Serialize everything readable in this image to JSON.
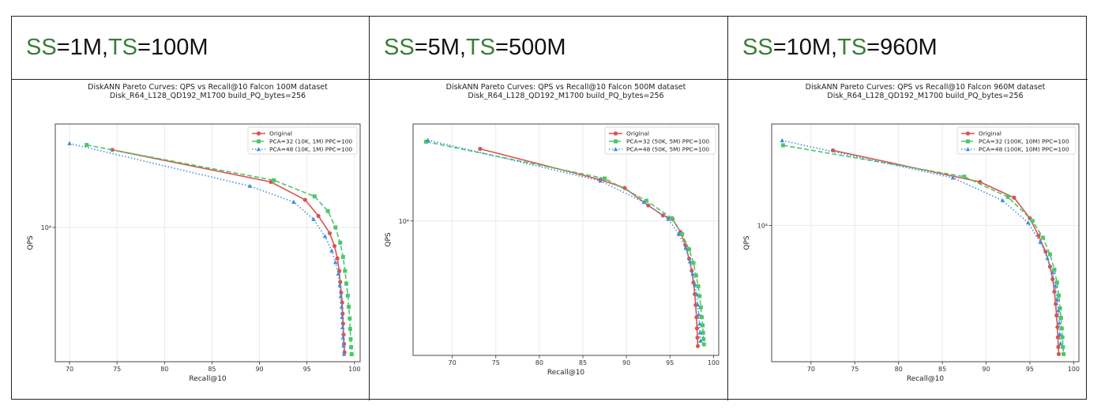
{
  "headers": [
    {
      "ss_label": "SS",
      "ss_value": "=1M, ",
      "ts_label": "TS",
      "ts_value": "=100M"
    },
    {
      "ss_label": "SS",
      "ss_value": "=5M, ",
      "ts_label": "TS",
      "ts_value": "=500M"
    },
    {
      "ss_label": "SS",
      "ss_value": "=10M, ",
      "ts_label": "TS",
      "ts_value": "=960M"
    }
  ],
  "colors": {
    "original": "#d9534f",
    "pca32": "#4cc76a",
    "pca48": "#3f8fe0",
    "accent_green": "#3a7d3a"
  },
  "chart_data": [
    {
      "type": "line",
      "title": "DiskANN Pareto Curves: QPS vs Recall@10 Falcon 100M dataset",
      "subtitle": "Disk_R64_L128_QD192_M1700 build_PQ_bytes=256",
      "xlabel": "Recall@10",
      "ylabel": "QPS",
      "xlim": [
        68.5,
        100.6
      ],
      "ylim": [
        2400,
        30000
      ],
      "yscale": "log",
      "xticks": [
        70,
        75,
        80,
        85,
        90,
        95,
        100
      ],
      "ytick_label": "10⁴",
      "ytick_value": 10000,
      "grid": true,
      "legend_position": "top-right",
      "series": [
        {
          "name": "Original",
          "style": "solid-circle",
          "x": [
            74.5,
            91.2,
            94.8,
            96.2,
            97.4,
            97.9,
            98.2,
            98.4,
            98.5,
            98.6,
            98.7,
            98.75,
            98.8,
            98.85,
            98.9,
            98.95
          ],
          "y": [
            22800,
            16200,
            13400,
            11300,
            9400,
            8200,
            7200,
            6300,
            5600,
            5000,
            4500,
            4000,
            3600,
            3200,
            2900,
            2650
          ]
        },
        {
          "name": "PCA=32 (10K, 1M) PPC=100",
          "style": "dashed-square",
          "x": [
            71.8,
            91.5,
            95.8,
            97.2,
            98.0,
            98.5,
            98.8,
            99.0,
            99.15,
            99.3,
            99.4,
            99.5,
            99.55,
            99.6,
            99.65,
            99.7
          ],
          "y": [
            24000,
            16500,
            13900,
            11900,
            10000,
            8500,
            7300,
            6300,
            5500,
            4850,
            4300,
            3800,
            3400,
            3050,
            2800,
            2600
          ]
        },
        {
          "name": "PCA=48 (10K, 1M) PPC=100",
          "style": "dotted-triangle",
          "x": [
            70.0,
            89.0,
            93.6,
            95.7,
            96.9,
            97.6,
            98.0,
            98.3,
            98.45,
            98.55,
            98.65,
            98.7,
            98.75,
            98.8,
            98.85,
            98.9
          ],
          "y": [
            24400,
            15500,
            13100,
            10900,
            9100,
            7800,
            6900,
            6100,
            5400,
            4800,
            4300,
            3850,
            3450,
            3100,
            2850,
            2600
          ]
        }
      ]
    },
    {
      "type": "line",
      "title": "DiskANN Pareto Curves: QPS vs Recall@10 Falcon 500M dataset",
      "subtitle": "Disk_R64_L128_QD192_M1700 build_PQ_bytes=256",
      "xlabel": "Recall@10",
      "ylabel": "QPS",
      "xlim": [
        65.5,
        100.6
      ],
      "ylim": [
        2400,
        28000
      ],
      "yscale": "log",
      "xticks": [
        70,
        75,
        80,
        85,
        90,
        95,
        100
      ],
      "ytick_label": "10⁴",
      "ytick_value": 10000,
      "grid": true,
      "legend_position": "top-right",
      "series": [
        {
          "name": "Original",
          "style": "solid-circle",
          "x": [
            73.2,
            87.0,
            89.8,
            92.5,
            94.2,
            95.3,
            96.2,
            96.8,
            97.2,
            97.5,
            97.7,
            97.85,
            97.95,
            98.05,
            98.1,
            98.15,
            98.2
          ],
          "y": [
            21500,
            15500,
            14200,
            11800,
            10600,
            10200,
            8900,
            7700,
            6700,
            5900,
            5200,
            4600,
            4100,
            3600,
            3200,
            2900,
            2650
          ]
        },
        {
          "name": "PCA=32 (50K, 5M) PPC=100",
          "style": "dashed-square",
          "x": [
            67.0,
            87.5,
            92.3,
            95.2,
            96.4,
            97.2,
            97.7,
            98.0,
            98.25,
            98.4,
            98.55,
            98.65,
            98.75,
            98.8,
            98.85,
            98.9
          ],
          "y": [
            23200,
            15700,
            12400,
            10300,
            8700,
            7400,
            6400,
            5600,
            5000,
            4500,
            4000,
            3600,
            3300,
            3050,
            2850,
            2700
          ]
        },
        {
          "name": "PCA=48 (50K, 5M) PPC=100",
          "style": "dotted-triangle",
          "x": [
            67.2,
            87.0,
            92.0,
            94.8,
            96.0,
            96.8,
            97.3,
            97.6,
            97.85,
            98.05,
            98.2,
            98.3,
            98.4,
            98.45,
            98.5
          ],
          "y": [
            23600,
            15300,
            12200,
            10200,
            8700,
            7500,
            6500,
            5700,
            5100,
            4600,
            4100,
            3700,
            3350,
            3050,
            2800
          ]
        }
      ]
    },
    {
      "type": "line",
      "title": "DiskANN Pareto Curves: QPS vs Recall@10 Falcon 960M dataset",
      "subtitle": "Disk_R64_L128_QD192_M1700 build_PQ_bytes=256",
      "xlabel": "Recall@10",
      "ylabel": "QPS",
      "xlim": [
        65.5,
        100.6
      ],
      "ylim": [
        2400,
        29000
      ],
      "yscale": "log",
      "xticks": [
        70,
        75,
        80,
        85,
        90,
        95,
        100
      ],
      "ytick_label": "10⁴",
      "ytick_value": 10000,
      "grid": true,
      "legend_position": "top-right",
      "series": [
        {
          "name": "Original",
          "style": "solid-circle",
          "x": [
            72.5,
            89.3,
            93.2,
            95.0,
            96.0,
            96.8,
            97.3,
            97.6,
            97.8,
            97.95,
            98.05,
            98.15,
            98.2,
            98.25,
            98.3
          ],
          "y": [
            22000,
            15800,
            13400,
            10800,
            9000,
            7600,
            6500,
            5700,
            5000,
            4400,
            3900,
            3450,
            3100,
            2800,
            2600
          ]
        },
        {
          "name": "PCA=32 (100K, 10M) PPC=100",
          "style": "dashed-square",
          "x": [
            66.8,
            87.5,
            92.5,
            95.3,
            96.5,
            97.3,
            97.8,
            98.1,
            98.3,
            98.45,
            98.55,
            98.65,
            98.72,
            98.78,
            98.85
          ],
          "y": [
            23200,
            16700,
            13500,
            10500,
            8800,
            7400,
            6300,
            5500,
            4800,
            4200,
            3800,
            3400,
            3100,
            2800,
            2600
          ]
        },
        {
          "name": "PCA=48 (100K, 10M) PPC=100",
          "style": "dotted-triangle",
          "x": [
            66.7,
            86.2,
            91.9,
            94.8,
            96.2,
            97.0,
            97.6,
            97.9,
            98.1,
            98.25,
            98.35,
            98.42,
            98.5
          ],
          "y": [
            24400,
            16500,
            13000,
            10300,
            8400,
            7100,
            6100,
            5300,
            4600,
            4100,
            3600,
            3200,
            2900
          ]
        }
      ]
    }
  ]
}
